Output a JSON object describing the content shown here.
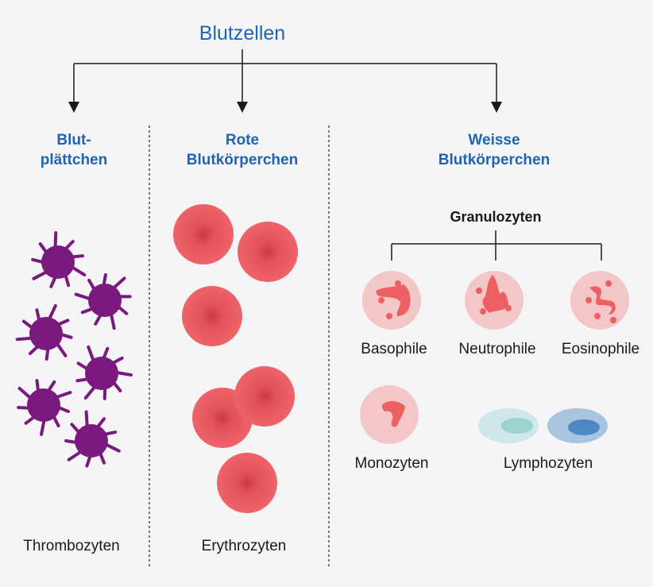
{
  "title": "Blutzellen",
  "categories": {
    "platelets": {
      "heading": [
        "Blut-",
        "plättchen"
      ],
      "label": "Thrombozyten"
    },
    "red": {
      "heading": [
        "Rote",
        "Blutkörperchen"
      ],
      "label": "Erythrozyten"
    },
    "white": {
      "heading": [
        "Weisse",
        "Blutkörperchen"
      ],
      "granulocytes": {
        "heading": "Granulozyten",
        "types": [
          "Basophile",
          "Neutrophile",
          "Eosinophile"
        ]
      },
      "monocytes": "Monozyten",
      "lymphocytes": "Lymphozyten"
    }
  },
  "colors": {
    "heading": "#1f64b0",
    "platelet": "#7b1a7e",
    "erythrocyte": "#ec5f63",
    "leukocyte_cell": "#f3c6c8",
    "leukocyte_nucleus": "#ec5f63",
    "lymph_light": "#cfe7e8",
    "lymph_light_nucleus": "#9bd4d0",
    "lymph_dark": "#a8c4e0",
    "lymph_dark_nucleus": "#4f86c4",
    "background": "#f5f5f8"
  }
}
